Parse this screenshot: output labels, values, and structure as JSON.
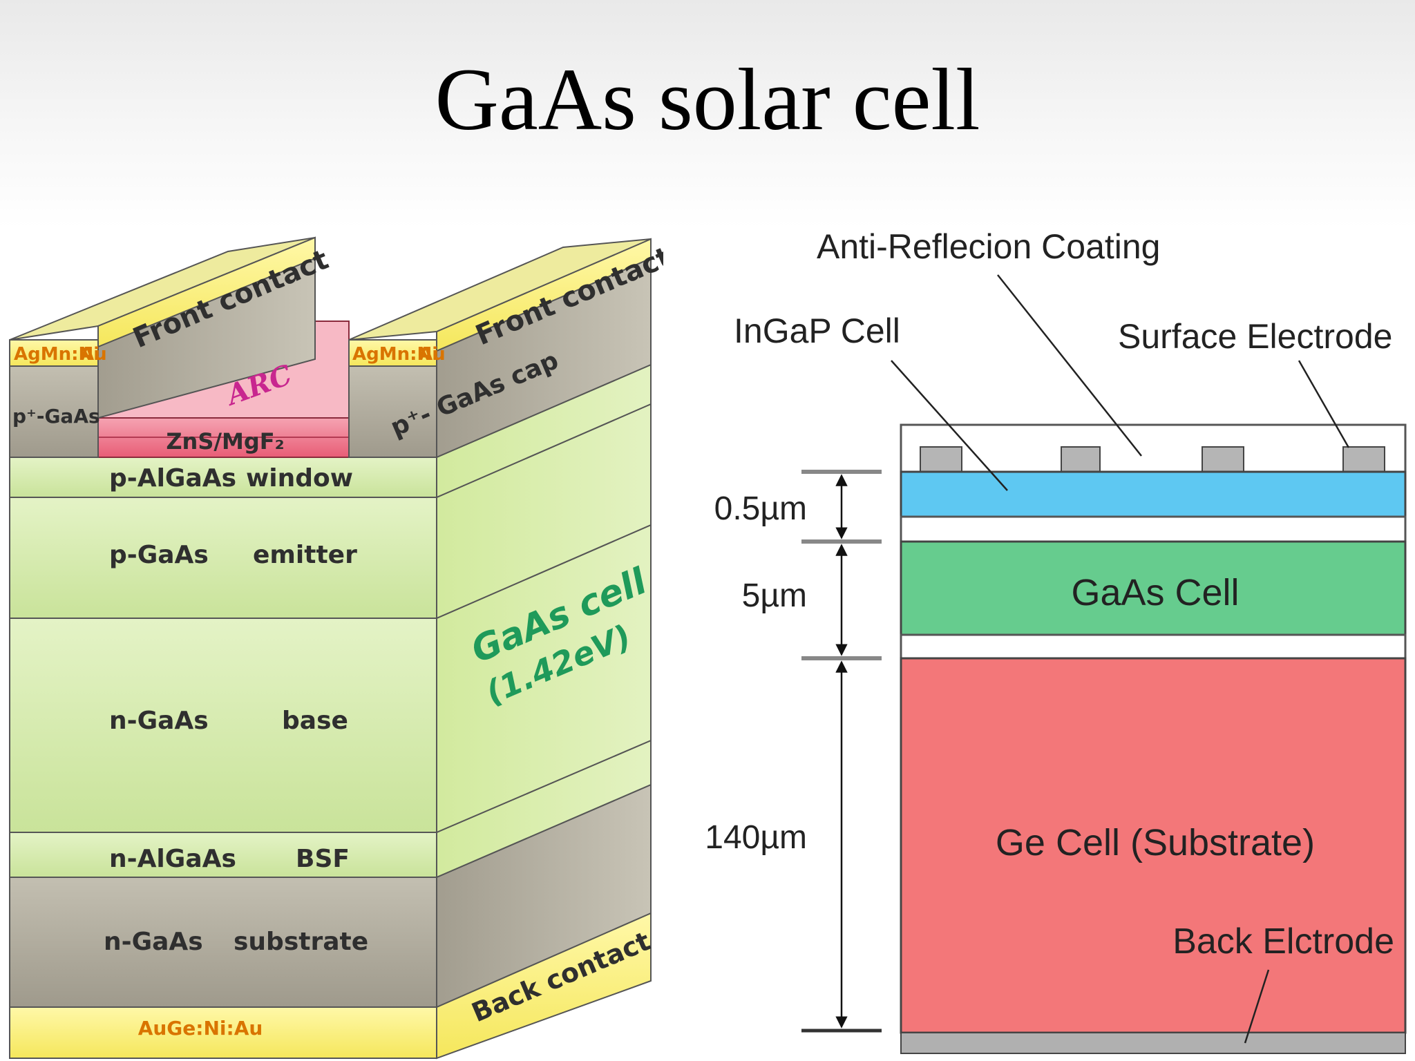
{
  "title": "GaAs solar cell",
  "left_diagram": {
    "front_contact": "Front contact",
    "contact_metal_left": "AgMn:Ni",
    "contact_metal_right": "Au",
    "cap_left": "p⁺-GaAs",
    "cap_right": "p⁺- GaAs cap",
    "arc": "ZnS/MgF₂",
    "arc_handwritten": "ARC",
    "layers": [
      {
        "material": "p-AlGaAs",
        "role": "window"
      },
      {
        "material": "p-GaAs",
        "role": "emitter"
      },
      {
        "material": "n-GaAs",
        "role": "base"
      },
      {
        "material": "n-AlGaAs",
        "role": "BSF"
      },
      {
        "material": "n-GaAs",
        "role": "substrate"
      }
    ],
    "back_contact_metal": "AuGe:Ni:Au",
    "back_contact": "Back contact",
    "cell_label": "GaAs cell",
    "cell_bandgap": "(1.42eV)"
  },
  "right_diagram": {
    "anti_reflection": "Anti-Reflecion Coating",
    "ingap": "InGaP Cell",
    "surface_electrode": "Surface Electrode",
    "gaas_cell": "GaAs Cell",
    "ge_cell": "Ge Cell (Substrate)",
    "back_electrode": "Back Elctrode",
    "dimensions": [
      "0.5µm",
      "5µm",
      "140µm"
    ]
  },
  "colors": {
    "ingap": "#5ec8f2",
    "gaas": "#66cc8e",
    "ge": "#f37779",
    "green_layer": "#d6ecb0",
    "contact_yellow": "#fff27a",
    "gray_block": "#aaa598",
    "arc_red": "#ee6c84"
  }
}
